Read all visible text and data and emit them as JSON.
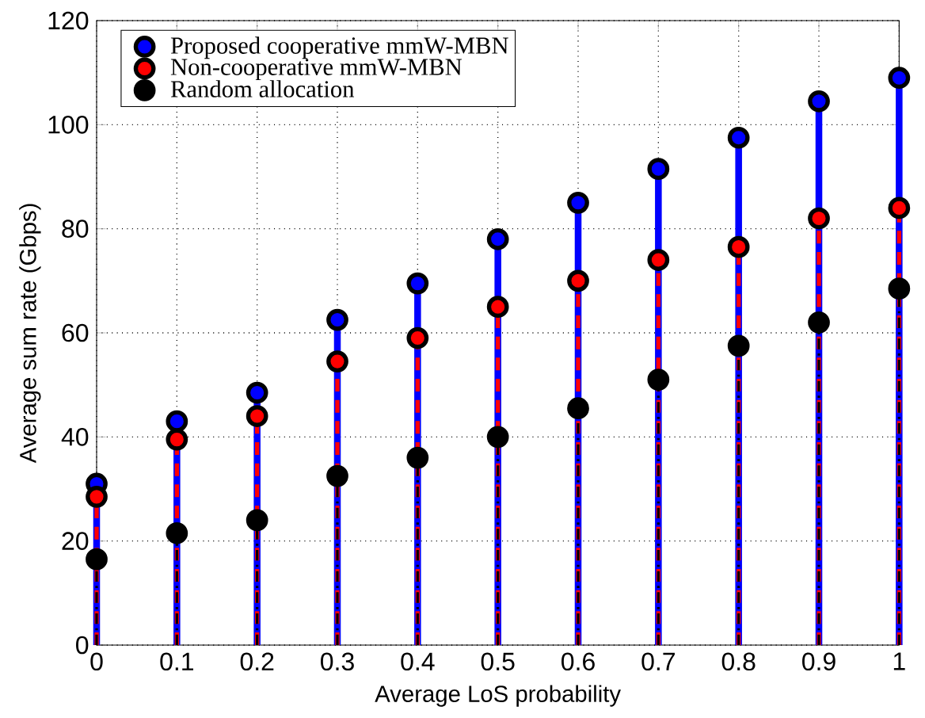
{
  "chart_data": {
    "type": "lollipop",
    "xlabel": "Average LoS probability",
    "ylabel": "Average sum rate (Gbps)",
    "x": [
      0,
      0.1,
      0.2,
      0.3,
      0.4,
      0.5,
      0.6,
      0.7,
      0.8,
      0.9,
      1
    ],
    "series": [
      {
        "name": "Proposed cooperative mmW-MBN",
        "color": "#0000ff",
        "line_style": "solid",
        "values": [
          31,
          43,
          48.5,
          62.5,
          69.5,
          78,
          85,
          91.5,
          97.5,
          104.5,
          109
        ]
      },
      {
        "name": "Non-cooperative mmW-MBN",
        "color": "#ff0000",
        "line_style": "dashed",
        "values": [
          28.5,
          39.5,
          44,
          54.5,
          59,
          65,
          70,
          74,
          76.5,
          82,
          84
        ]
      },
      {
        "name": "Random allocation",
        "color": "#000000",
        "line_style": "dashdot",
        "values": [
          16.5,
          21.5,
          24,
          32.5,
          36,
          40,
          45.5,
          51,
          57.5,
          62,
          68.5
        ]
      }
    ],
    "xlim": [
      0,
      1
    ],
    "ylim": [
      0,
      120
    ],
    "xticks": [
      0,
      0.1,
      0.2,
      0.3,
      0.4,
      0.5,
      0.6,
      0.7,
      0.8,
      0.9,
      1
    ],
    "yticks": [
      0,
      20,
      40,
      60,
      80,
      100,
      120
    ],
    "grid": true,
    "legend": "top left",
    "marker": "circle"
  }
}
